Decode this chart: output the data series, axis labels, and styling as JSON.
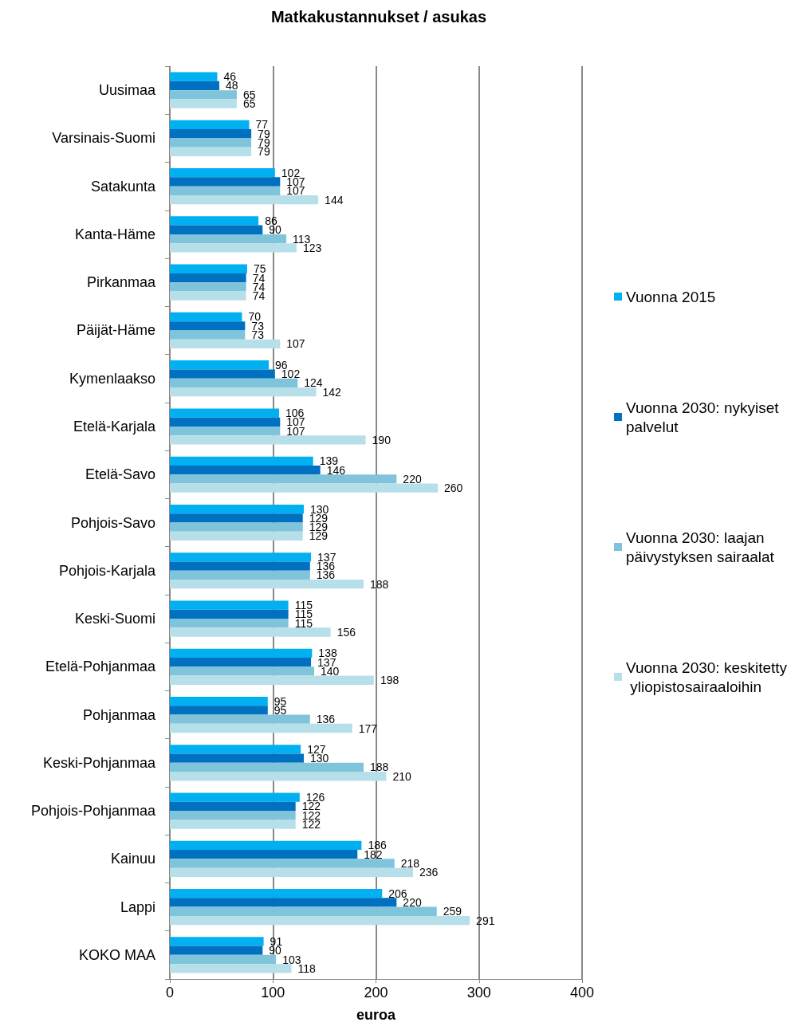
{
  "chart_data": {
    "type": "bar",
    "orientation": "horizontal",
    "title": "Matkakustannukset / asukas",
    "xlabel": "euroa",
    "categories": [
      "Uusimaa",
      "Varsinais-Suomi",
      "Satakunta",
      "Kanta-Häme",
      "Pirkanmaa",
      "Päijät-Häme",
      "Kymenlaakso",
      "Etelä-Karjala",
      "Etelä-Savo",
      "Pohjois-Savo",
      "Pohjois-Karjala",
      "Keski-Suomi",
      "Etelä-Pohjanmaa",
      "Pohjanmaa",
      "Keski-Pohjanmaa",
      "Pohjois-Pohjanmaa",
      "Kainuu",
      "Lappi",
      "KOKO MAA"
    ],
    "series": [
      {
        "name": "Vuonna 2015",
        "color": "#00b0f0",
        "values": [
          46,
          77,
          102,
          86,
          75,
          70,
          96,
          106,
          139,
          130,
          137,
          115,
          138,
          95,
          127,
          126,
          186,
          206,
          91
        ]
      },
      {
        "name": "Vuonna 2030: nykyiset palvelut",
        "color": "#0070c0",
        "values": [
          48,
          79,
          107,
          90,
          74,
          73,
          102,
          107,
          146,
          129,
          136,
          115,
          137,
          95,
          130,
          122,
          182,
          220,
          90
        ]
      },
      {
        "name": "Vuonna 2030: laajan päivystyksen sairaalat",
        "color": "#7fc4da",
        "values": [
          65,
          79,
          107,
          113,
          74,
          73,
          124,
          107,
          220,
          129,
          136,
          115,
          140,
          136,
          188,
          122,
          218,
          259,
          103
        ]
      },
      {
        "name": "Vuonna 2030: keskitetty yliopistosairaaloihin",
        "color": "#b7dfe9",
        "values": [
          65,
          79,
          144,
          123,
          74,
          107,
          142,
          190,
          260,
          129,
          188,
          156,
          198,
          177,
          210,
          122,
          236,
          291,
          118
        ]
      }
    ],
    "xlim": [
      0,
      400
    ],
    "xticks": [
      0,
      100,
      200,
      300,
      400
    ],
    "grid": "x",
    "legend": "right",
    "data_labels": true
  }
}
